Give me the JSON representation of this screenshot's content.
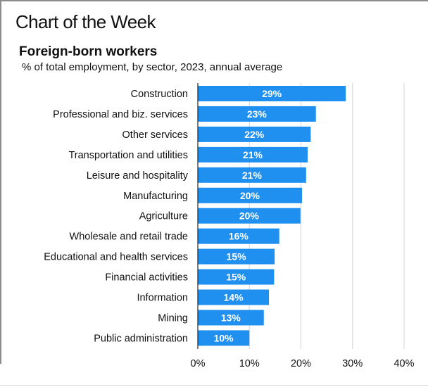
{
  "header": {
    "title": "Chart of the Week"
  },
  "chart_data": {
    "type": "bar",
    "orientation": "horizontal",
    "title": "Foreign-born workers",
    "subtitle": "% of total employment, by sector, 2023, annual average",
    "categories": [
      "Construction",
      "Professional and biz. services",
      "Other services",
      "Transportation and utilities",
      "Leisure and hospitality",
      "Manufacturing",
      "Agriculture",
      "Wholesale and retail trade",
      "Educational and health services",
      "Financial activities",
      "Information",
      "Mining",
      "Public administration"
    ],
    "values": [
      28.7,
      22.9,
      21.9,
      21.3,
      21.0,
      20.2,
      19.9,
      15.8,
      14.9,
      14.8,
      13.8,
      12.8,
      10.0
    ],
    "data_labels": [
      "29%",
      "23%",
      "22%",
      "21%",
      "21%",
      "20%",
      "20%",
      "16%",
      "15%",
      "15%",
      "14%",
      "13%",
      "10%"
    ],
    "xlim": [
      0,
      40
    ],
    "x_ticks": [
      0,
      10,
      20,
      30,
      40
    ],
    "x_tick_labels": [
      "0%",
      "10%",
      "20%",
      "30%",
      "40%"
    ],
    "xlabel": "",
    "ylabel": "",
    "grid": true,
    "legend": "none",
    "colors": {
      "bar": "#1f8ff0",
      "bar_label": "#ffffff",
      "grid": "#d5d5d5",
      "axis": "#222222"
    }
  }
}
